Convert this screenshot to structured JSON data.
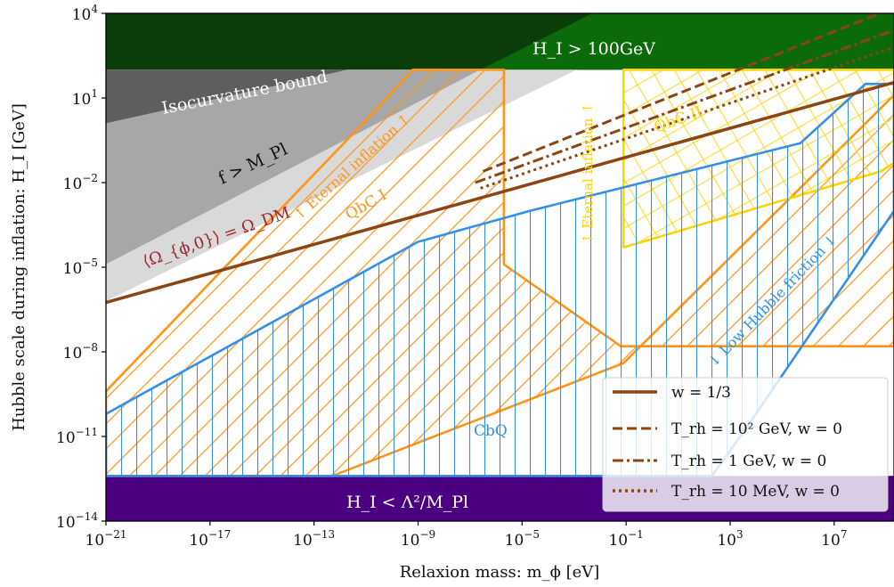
{
  "chart_data": {
    "type": "area",
    "title": "",
    "xlabel": "Relaxion mass:  m_ϕ [eV]",
    "ylabel": "Hubble scale during inflation:  H_I [GeV]",
    "x_scale": "log",
    "y_scale": "log",
    "xlim_log10": [
      -21,
      9.3
    ],
    "ylim_log10": [
      -14,
      4
    ],
    "x_ticks": [
      {
        "log10": -21,
        "base": "10",
        "exp": "−21"
      },
      {
        "log10": -17,
        "base": "10",
        "exp": "−17"
      },
      {
        "log10": -13,
        "base": "10",
        "exp": "−13"
      },
      {
        "log10": -9,
        "base": "10",
        "exp": "−9"
      },
      {
        "log10": -5,
        "base": "10",
        "exp": "−5"
      },
      {
        "log10": -1,
        "base": "10",
        "exp": "−1"
      },
      {
        "log10": 3,
        "base": "10",
        "exp": "3"
      },
      {
        "log10": 7,
        "base": "10",
        "exp": "7"
      }
    ],
    "y_ticks": [
      {
        "log10": -14,
        "base": "10",
        "exp": "−14"
      },
      {
        "log10": -11,
        "base": "10",
        "exp": "−11"
      },
      {
        "log10": -8,
        "base": "10",
        "exp": "−8"
      },
      {
        "log10": -5,
        "base": "10",
        "exp": "−5"
      },
      {
        "log10": -2,
        "base": "10",
        "exp": "−2"
      },
      {
        "log10": 1,
        "base": "10",
        "exp": "1"
      },
      {
        "log10": 4,
        "base": "10",
        "exp": "4"
      }
    ],
    "regions": [
      {
        "name": "H_I < Λ²/M_Pl",
        "color": "#4b0082",
        "points": [
          [
            -21,
            -14
          ],
          [
            9.3,
            -14
          ],
          [
            9.3,
            -12.4
          ],
          [
            -21,
            -12.4
          ]
        ]
      },
      {
        "name": "H_I > 100GeV",
        "color": "#0a3d0a",
        "points": [
          [
            -21,
            2
          ],
          [
            9.3,
            2
          ],
          [
            9.3,
            4
          ],
          [
            -21,
            4
          ]
        ]
      },
      {
        "name": "H_I > 100GeV (bright)",
        "color": "#0b6b0b",
        "points": [
          [
            -6.6,
            2
          ],
          [
            9.3,
            2
          ],
          [
            9.3,
            4
          ],
          [
            -2.3,
            4
          ]
        ]
      },
      {
        "name": "Isocurvature bound",
        "color": "#5e5e5e",
        "points": [
          [
            -21,
            0.1
          ],
          [
            -21,
            2
          ],
          [
            -11.7,
            2
          ]
        ]
      },
      {
        "name": "f > M_Pl",
        "color": "#a7a7a7",
        "points": [
          [
            -21,
            -4.9
          ],
          [
            -21,
            0.1
          ],
          [
            -11.7,
            2
          ],
          [
            -6.6,
            2
          ]
        ]
      },
      {
        "name": "Ω bound shading",
        "color": "#d9d9d9",
        "points": [
          [
            -21,
            -6.2
          ],
          [
            -21,
            -4.9
          ],
          [
            -6.6,
            2
          ],
          [
            -2.9,
            2
          ]
        ]
      }
    ],
    "hatched_regions": [
      {
        "name": "QbC I",
        "color": "#ff9416",
        "hatch": "diagonal",
        "points": [
          [
            -21,
            -12.4
          ],
          [
            -21,
            -9.4
          ],
          [
            -10.5,
            0.7
          ],
          [
            -9.2,
            2
          ],
          [
            -5.7,
            2
          ],
          [
            -5.7,
            -4.9
          ],
          [
            -1.2,
            -7.8
          ],
          [
            9.3,
            -7.8
          ],
          [
            9.3,
            1.1
          ],
          [
            -1.1,
            -8.4
          ],
          [
            -12.3,
            -12.4
          ]
        ]
      },
      {
        "name": "QbC II",
        "color": "#ffd400",
        "hatch": "grid",
        "points": [
          [
            -1.1,
            -4.3
          ],
          [
            -1.1,
            2
          ],
          [
            9.3,
            2
          ],
          [
            9.3,
            -1.3
          ],
          [
            8.8,
            -1.6
          ]
        ]
      },
      {
        "name": "CbQ",
        "color": "#3390e6",
        "hatch": "vertical",
        "points": [
          [
            -21,
            -12.4
          ],
          [
            -21,
            -10.2
          ],
          [
            -9,
            -4.1
          ],
          [
            -4.7,
            -3
          ],
          [
            5.7,
            -0.6
          ],
          [
            8.2,
            1.5
          ],
          [
            9.3,
            1.5
          ],
          [
            9.3,
            -3
          ],
          [
            3.7,
            -10.6
          ],
          [
            2.3,
            -12.4
          ],
          [
            -1.3,
            -12.4
          ]
        ]
      }
    ],
    "series": [
      {
        "name": "w = 1/3",
        "style": "solid",
        "color": "#8b4513",
        "x": [
          -21,
          9.3
        ],
        "y": [
          -6.25,
          1.55
        ]
      },
      {
        "name": "T_rh = 10² GeV, w = 0",
        "style": "dashed",
        "color": "#8b4513",
        "x": [
          -6.5,
          9.3
        ],
        "y": [
          -1.6,
          4.2
        ]
      },
      {
        "name": "T_rh = 1 GeV, w = 0",
        "style": "dashdot",
        "color": "#8b4513",
        "x": [
          -6.8,
          9.3
        ],
        "y": [
          -2.0,
          3.4
        ]
      },
      {
        "name": "T_rh = 10 MeV, w = 0",
        "style": "dotted",
        "color": "#8b4513",
        "x": [
          -6.6,
          9.3
        ],
        "y": [
          -2.2,
          2.8
        ]
      }
    ],
    "annotations": [
      {
        "name": "H_I > 100GeV",
        "color": "#ffffff"
      },
      {
        "name": "Isocurvature bound",
        "color": "#ffffff"
      },
      {
        "name": "f > M_Pl",
        "color": "#111111"
      },
      {
        "name": "⟨Ω_{ϕ,0}⟩ = Ω_DM",
        "color": "#a0262e"
      },
      {
        "name": "↑ Eternal inflation ↑",
        "color": "#ff9416"
      },
      {
        "name": "QbC I",
        "color": "#ff9416"
      },
      {
        "name": "↑ Eternal inflation ↑",
        "color": "#ffd400"
      },
      {
        "name": "QbC II",
        "color": "#ffd400"
      },
      {
        "name": "CbQ",
        "color": "#3390e6"
      },
      {
        "name": "↓ Low Hubble friction ↓",
        "color": "#3390e6"
      },
      {
        "name": "H_I < Λ²/M_Pl",
        "color": "#ffffff"
      }
    ],
    "legend": {
      "placement": "lower-right",
      "entries": [
        {
          "label": "w = 1/3",
          "style": "solid"
        },
        {
          "label": "T_rh = 10² GeV, w = 0",
          "style": "dashed"
        },
        {
          "label": "T_rh = 1 GeV, w = 0",
          "style": "dashdot"
        },
        {
          "label": "T_rh = 10 MeV, w = 0",
          "style": "dotted"
        }
      ]
    },
    "grid": false
  }
}
